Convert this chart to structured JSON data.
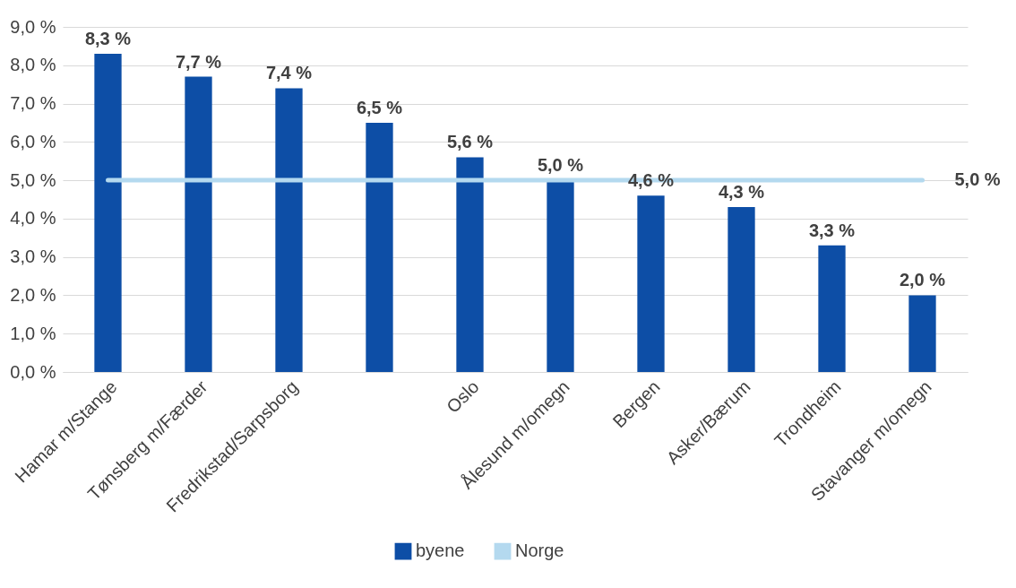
{
  "chart_data": {
    "type": "bar",
    "categories": [
      "Hamar m/Stange",
      "Tønsberg m/Færder",
      "Fredrikstad/Sarpsborg",
      null,
      "Oslo",
      "Ålesund m/omegn",
      "Bergen",
      "Asker/Bærum",
      "Trondheim",
      "Stavanger m/omegn"
    ],
    "series": [
      {
        "name": "byene",
        "color": "#0d4ea6",
        "values": [
          8.3,
          7.7,
          7.4,
          6.5,
          5.6,
          5.0,
          4.6,
          4.3,
          3.3,
          2.0
        ],
        "value_labels": [
          "8,3 %",
          "7,7 %",
          "7,4 %",
          "6,5 %",
          "5,6 %",
          "5,0 %",
          "4,6 %",
          "4,3 %",
          "3,3 %",
          "2,0 %"
        ]
      },
      {
        "name": "Norge",
        "type": "line",
        "color": "#b4d9ef",
        "values": [
          5.0,
          5.0,
          5.0,
          5.0,
          5.0,
          5.0,
          5.0,
          5.0,
          5.0,
          5.0
        ],
        "value_labels": [
          null,
          null,
          null,
          null,
          null,
          null,
          null,
          null,
          null,
          "5,0 %"
        ]
      }
    ],
    "ylim": [
      0,
      9
    ],
    "yticks": [
      {
        "value": 0,
        "label": "0,0 %"
      },
      {
        "value": 1,
        "label": "1,0 %"
      },
      {
        "value": 2,
        "label": "2,0 %"
      },
      {
        "value": 3,
        "label": "3,0 %"
      },
      {
        "value": 4,
        "label": "4,0 %"
      },
      {
        "value": 5,
        "label": "5,0 %"
      },
      {
        "value": 6,
        "label": "6,0 %"
      },
      {
        "value": 7,
        "label": "7,0 %"
      },
      {
        "value": 8,
        "label": "8,0 %"
      },
      {
        "value": 9,
        "label": "9,0 %"
      }
    ],
    "grid": "y",
    "legend": "bottom"
  }
}
